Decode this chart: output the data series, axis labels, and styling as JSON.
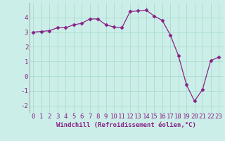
{
  "x": [
    0,
    1,
    2,
    3,
    4,
    5,
    6,
    7,
    8,
    9,
    10,
    11,
    12,
    13,
    14,
    15,
    16,
    17,
    18,
    19,
    20,
    21,
    22,
    23
  ],
  "y": [
    3.0,
    3.05,
    3.1,
    3.3,
    3.3,
    3.5,
    3.6,
    3.9,
    3.9,
    3.5,
    3.35,
    3.3,
    4.4,
    4.45,
    4.5,
    4.1,
    3.8,
    2.8,
    1.4,
    -0.6,
    -1.7,
    -0.9,
    1.05,
    1.3
  ],
  "line_color": "#882288",
  "marker": "D",
  "marker_size": 2.5,
  "bg_color": "#cceee8",
  "grid_color": "#aaddcc",
  "xlabel": "Windchill (Refroidissement éolien,°C)",
  "xlabel_fontsize": 6.5,
  "tick_fontsize": 6.5,
  "ylim": [
    -2.5,
    5.0
  ],
  "xlim": [
    -0.5,
    23.5
  ],
  "yticks": [
    -2,
    -1,
    0,
    1,
    2,
    3,
    4
  ],
  "xticks": [
    0,
    1,
    2,
    3,
    4,
    5,
    6,
    7,
    8,
    9,
    10,
    11,
    12,
    13,
    14,
    15,
    16,
    17,
    18,
    19,
    20,
    21,
    22,
    23
  ]
}
